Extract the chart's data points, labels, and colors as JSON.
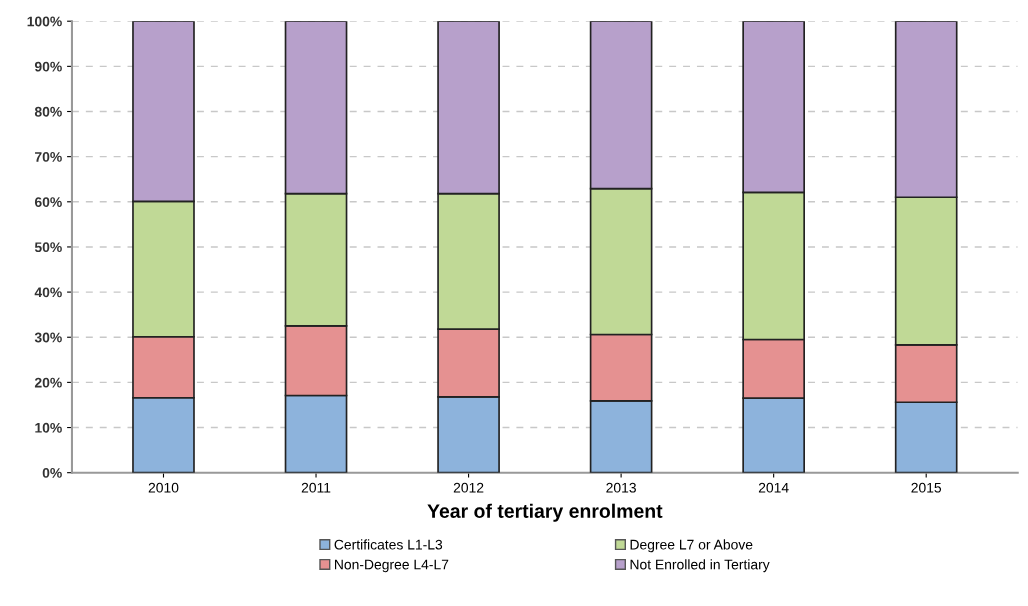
{
  "chart_data": {
    "type": "bar",
    "stacked": true,
    "xlabel": "Year of tertiary enrolment",
    "categories": [
      "2010",
      "2011",
      "2012",
      "2013",
      "2014",
      "2015"
    ],
    "series": [
      {
        "name": "Certificates L1-L3",
        "color": "#8db3dc",
        "values": [
          16.6,
          17.1,
          16.8,
          15.9,
          16.5,
          15.6
        ]
      },
      {
        "name": "Non-Degree L4-L7",
        "color": "#e59191",
        "values": [
          13.5,
          15.4,
          15.0,
          14.7,
          13.0,
          12.7
        ]
      },
      {
        "name": "Degree L7 or Above",
        "color": "#c0d996",
        "values": [
          30.0,
          29.3,
          30.0,
          32.3,
          32.6,
          32.7
        ]
      },
      {
        "name": "Not Enrolled in Tertiary",
        "color": "#b7a0cb",
        "values": [
          39.9,
          38.2,
          38.2,
          37.1,
          37.9,
          39.0
        ]
      }
    ],
    "ylim": [
      0,
      100
    ],
    "yticks": [
      {
        "value": 0,
        "label": "0%"
      },
      {
        "value": 10,
        "label": "10%"
      },
      {
        "value": 20,
        "label": "20%"
      },
      {
        "value": 30,
        "label": "30%"
      },
      {
        "value": 40,
        "label": "40%"
      },
      {
        "value": 50,
        "label": "50%"
      },
      {
        "value": 60,
        "label": "60%"
      },
      {
        "value": 70,
        "label": "70%"
      },
      {
        "value": 80,
        "label": "80%"
      },
      {
        "value": 90,
        "label": "90%"
      },
      {
        "value": 100,
        "label": "100%"
      }
    ],
    "grid": "y",
    "legend": "bottom"
  }
}
